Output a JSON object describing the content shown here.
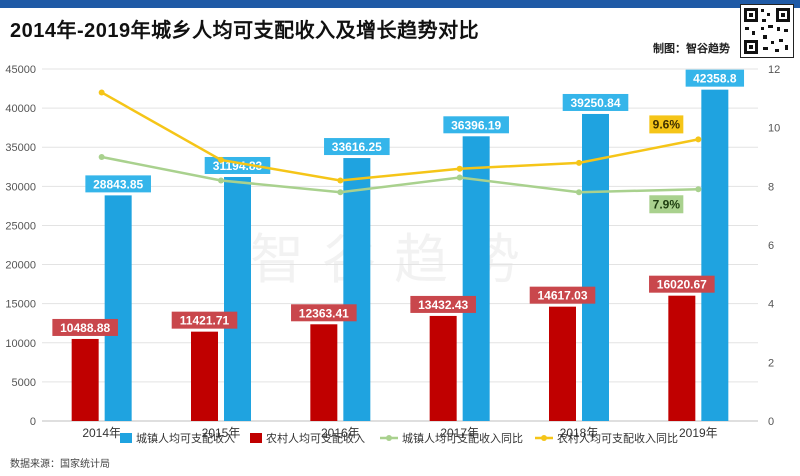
{
  "title": "2014年-2019年城乡人均可支配收入及增长趋势对比",
  "maker": "制图：智谷趋势",
  "watermark": "智谷趋势",
  "source": "数据来源：国家统计局",
  "colors": {
    "urban_bar": "#1fa3e0",
    "rural_bar": "#c00000",
    "urban_label_bg": "#35b5ea",
    "rural_label_bg": "#c9474c",
    "urban_growth_line": "#a9d18e",
    "rural_growth_line": "#f5c518",
    "grid": "#e3e3e3",
    "axis_text": "#555555"
  },
  "chart_data": {
    "type": "bar",
    "categories": [
      "2014年",
      "2015年",
      "2016年",
      "2017年",
      "2018年",
      "2019年"
    ],
    "ylim_left": [
      0,
      45000
    ],
    "yticks_left": [
      0,
      5000,
      10000,
      15000,
      20000,
      25000,
      30000,
      35000,
      40000,
      45000
    ],
    "ylim_right": [
      0,
      12
    ],
    "yticks_right": [
      0,
      2,
      4,
      6,
      8,
      10,
      12
    ],
    "grid": true,
    "legend_position": "bottom",
    "series": [
      {
        "name": "城镇人均可支配收入",
        "type": "bar",
        "axis": "left",
        "values": [
          28843.85,
          31194.83,
          33616.25,
          36396.19,
          39250.84,
          42358.8
        ],
        "labels": [
          "28843.85",
          "31194.83",
          "33616.25",
          "36396.19",
          "39250.84",
          "42358.8"
        ]
      },
      {
        "name": "农村人均可支配收入",
        "type": "bar",
        "axis": "left",
        "values": [
          10488.88,
          11421.71,
          12363.41,
          13432.43,
          14617.03,
          16020.67
        ],
        "labels": [
          "10488.88",
          "11421.71",
          "12363.41",
          "13432.43",
          "14617.03",
          "16020.67"
        ]
      },
      {
        "name": "城镇人均可支配收入同比",
        "type": "line",
        "axis": "right",
        "values": [
          9.0,
          8.2,
          7.8,
          8.3,
          7.8,
          7.9
        ],
        "end_label": "7.9%"
      },
      {
        "name": "农村人均可支配收入同比",
        "type": "line",
        "axis": "right",
        "values": [
          11.2,
          8.9,
          8.2,
          8.6,
          8.8,
          9.6
        ],
        "end_label": "9.6%"
      }
    ]
  }
}
